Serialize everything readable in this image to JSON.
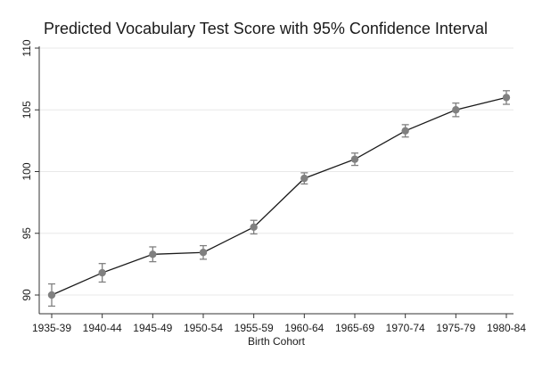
{
  "chart_data": {
    "type": "line",
    "title": "Predicted Vocabulary Test Score with 95% Confidence Interval",
    "xlabel": "Birth Cohort",
    "ylabel": "",
    "categories": [
      "1935-39",
      "1940-44",
      "1945-49",
      "1950-54",
      "1955-59",
      "1960-64",
      "1965-69",
      "1970-74",
      "1975-79",
      "1980-84"
    ],
    "yticks": [
      90,
      95,
      100,
      105,
      110
    ],
    "ylim": [
      89,
      110
    ],
    "grid": true,
    "series": [
      {
        "values": [
          90.0,
          91.8,
          93.3,
          93.45,
          95.5,
          99.45,
          101.0,
          103.3,
          105.0,
          106.0
        ],
        "ci_lower": [
          89.1,
          91.05,
          92.7,
          92.9,
          94.95,
          99.0,
          100.5,
          102.8,
          104.45,
          105.45
        ],
        "ci_upper": [
          90.9,
          92.55,
          93.9,
          94.0,
          96.05,
          99.9,
          101.5,
          103.8,
          105.55,
          106.55
        ],
        "color": "#808080"
      }
    ],
    "line_color": "#1a1a1a"
  }
}
